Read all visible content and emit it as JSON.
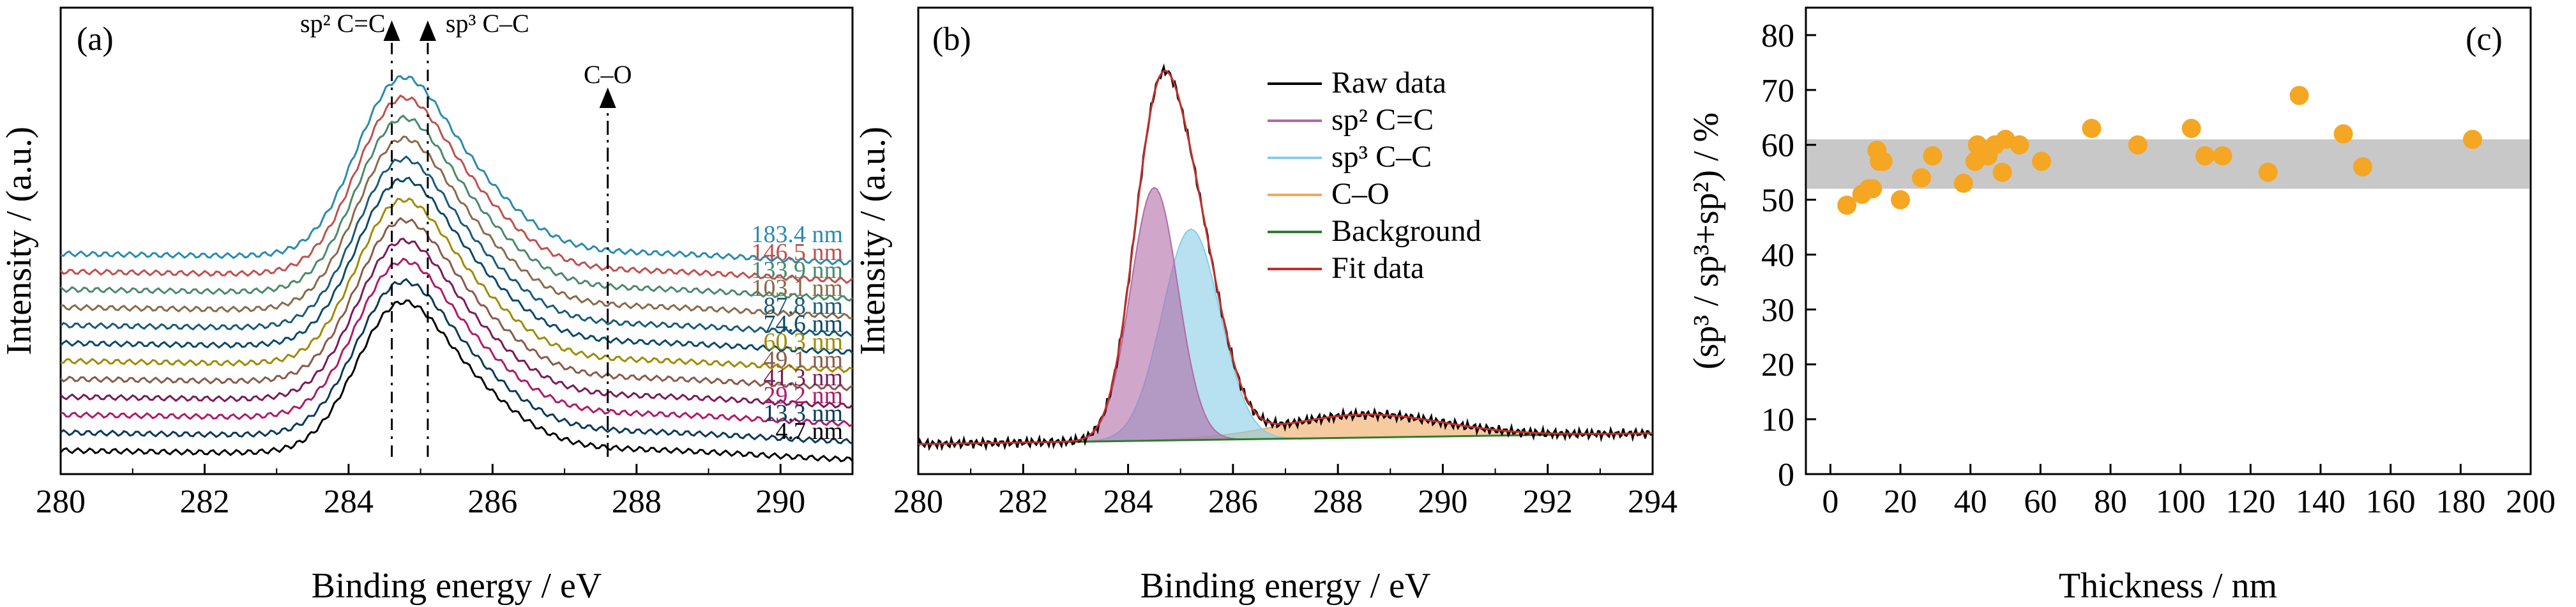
{
  "chart_data": [
    {
      "panel": "(a)",
      "type": "line",
      "xlabel": "Binding energy / eV",
      "ylabel": "Intensity / (a.u.)",
      "xlim": [
        280,
        291
      ],
      "xticks": [
        "280",
        "282",
        "284",
        "286",
        "288",
        "290"
      ],
      "y_ticks_shown": false,
      "annotations": [
        {
          "text": "sp² C=C",
          "x": 284.6
        },
        {
          "text": "sp³ C–C",
          "x": 285.1
        },
        {
          "text": "C–O",
          "x": 287.6
        }
      ],
      "series": [
        {
          "name": "4.7 nm",
          "color": "#000000",
          "offset": 0
        },
        {
          "name": "13.3 nm",
          "color": "#0b3a5a",
          "offset": 1
        },
        {
          "name": "29.2 nm",
          "color": "#b01a6a",
          "offset": 2
        },
        {
          "name": "41.3 nm",
          "color": "#7a1a5a",
          "offset": 3
        },
        {
          "name": "49.1 nm",
          "color": "#8a5a4a",
          "offset": 4
        },
        {
          "name": "60.3 nm",
          "color": "#a08a00",
          "offset": 5
        },
        {
          "name": "74.6 nm",
          "color": "#0a4a6a",
          "offset": 6
        },
        {
          "name": "87.8 nm",
          "color": "#1a5a7a",
          "offset": 7
        },
        {
          "name": "103.1 nm",
          "color": "#8a6a4a",
          "offset": 8
        },
        {
          "name": "133.9 nm",
          "color": "#4a8a6a",
          "offset": 9
        },
        {
          "name": "146.5 nm",
          "color": "#c0504d",
          "offset": 10
        },
        {
          "name": "183.4 nm",
          "color": "#2a8ab0",
          "offset": 11
        }
      ]
    },
    {
      "panel": "(b)",
      "type": "area",
      "xlabel": "Binding energy / eV",
      "ylabel": "Intensity / (a.u.)",
      "xlim": [
        280,
        294
      ],
      "xticks": [
        "280",
        "282",
        "284",
        "286",
        "288",
        "290",
        "292",
        "294"
      ],
      "y_ticks_shown": false,
      "legend": "top-right",
      "components": [
        {
          "name": "Raw data",
          "color": "#000000",
          "kind": "line"
        },
        {
          "name": "sp² C=C",
          "color": "#b06aa8",
          "kind": "area",
          "center": 284.5,
          "height": 0.66,
          "sigma": 0.45
        },
        {
          "name": "sp³ C–C",
          "color": "#87cde6",
          "kind": "area",
          "center": 285.2,
          "height": 0.55,
          "sigma": 0.55
        },
        {
          "name": "C–O",
          "color": "#f0a860",
          "kind": "area",
          "center": 288.5,
          "height": 0.06,
          "sigma": 1.5
        },
        {
          "name": "Background",
          "color": "#2e7d2e",
          "kind": "line"
        },
        {
          "name": "Fit data",
          "color": "#c0302a",
          "kind": "line"
        }
      ]
    },
    {
      "panel": "(c)",
      "type": "scatter",
      "xlabel": "Thickness / nm",
      "ylabel": "(sp³ / sp³+sp²) / %",
      "xlim": [
        -7,
        200
      ],
      "ylim": [
        0,
        85
      ],
      "xticks": [
        0,
        20,
        40,
        60,
        80,
        100,
        120,
        140,
        160,
        180,
        200
      ],
      "yticks": [
        0,
        10,
        20,
        30,
        40,
        50,
        60,
        70,
        80
      ],
      "band": [
        52,
        61
      ],
      "marker_color": "#f5a623",
      "x": [
        4.7,
        9,
        11,
        12,
        13.3,
        14,
        15,
        20,
        26,
        29.2,
        38,
        41.3,
        42,
        45,
        47,
        49.1,
        50,
        54,
        60.3,
        74.6,
        87.8,
        103.1,
        107,
        112,
        125,
        133.9,
        146.5,
        152,
        183.4
      ],
      "y": [
        49,
        51,
        52,
        52,
        59,
        57,
        57,
        50,
        54,
        58,
        53,
        57,
        60,
        58,
        60,
        55,
        61,
        60,
        57,
        63,
        60,
        63,
        58,
        58,
        55,
        69,
        62,
        56,
        61
      ]
    }
  ],
  "panel_labels": {
    "a": "(a)",
    "b": "(b)",
    "c": "(c)"
  }
}
